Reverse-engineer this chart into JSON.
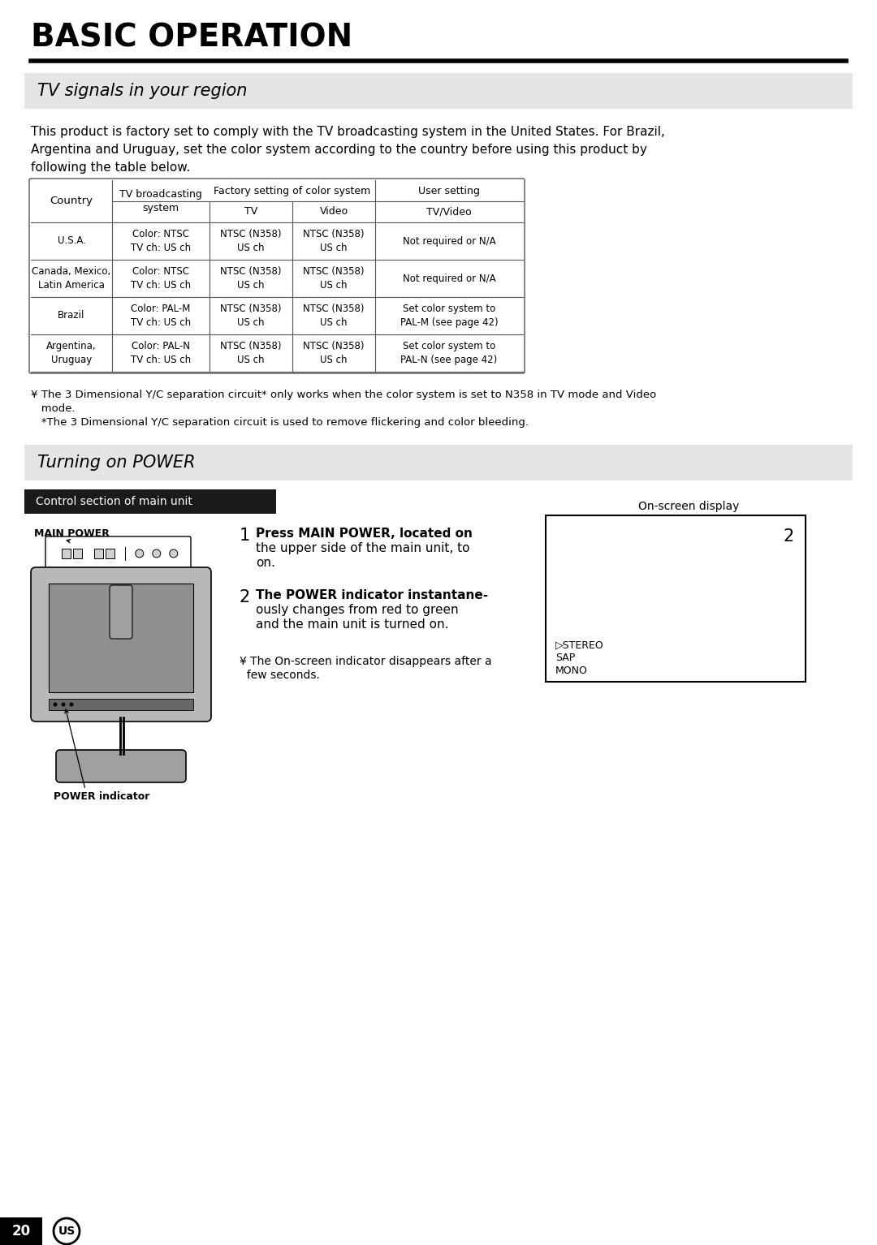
{
  "title": "BASIC OPERATION",
  "section1_title": "TV signals in your region",
  "section1_body_line1": "This product is factory set to comply with the TV broadcasting system in the United States. For Brazil,",
  "section1_body_line2": "Argentina and Uruguay, set the color system according to the country before using this product by",
  "section1_body_line3": "following the table below.",
  "table_rows": [
    [
      "U.S.A.",
      "Color: NTSC\nTV ch: US ch",
      "NTSC (N358)\nUS ch",
      "NTSC (N358)\nUS ch",
      "Not required or N/A"
    ],
    [
      "Canada, Mexico,\nLatin America",
      "Color: NTSC\nTV ch: US ch",
      "NTSC (N358)\nUS ch",
      "NTSC (N358)\nUS ch",
      "Not required or N/A"
    ],
    [
      "Brazil",
      "Color: PAL-M\nTV ch: US ch",
      "NTSC (N358)\nUS ch",
      "NTSC (N358)\nUS ch",
      "Set color system to\nPAL-M (see page 42)"
    ],
    [
      "Argentina,\nUruguay",
      "Color: PAL-N\nTV ch: US ch",
      "NTSC (N358)\nUS ch",
      "NTSC (N358)\nUS ch",
      "Set color system to\nPAL-N (see page 42)"
    ]
  ],
  "note1_line1": "¥ The 3 Dimensional Y/C separation circuit* only works when the color system is set to N358 in TV mode and Video",
  "note1_line2": "   mode.",
  "note1_line3": "   *The 3 Dimensional Y/C separation circuit is used to remove flickering and color bleeding.",
  "section2_title": "Turning on POWER",
  "section2_subtitle": "Control section of main unit",
  "step1_bold": "Press MAIN POWER, located on",
  "step1_rest_line1": "the upper side of the main unit, to",
  "step1_rest_line2": "on.",
  "step2_bold": "The POWER indicator instantane-",
  "step2_rest_line1": "ously changes from red to green",
  "step2_rest_line2": "and the main unit is turned on.",
  "note2_line1": "¥ The On-screen indicator disappears after a",
  "note2_line2": "  few seconds.",
  "main_power_label": "MAIN POWER",
  "power_indicator_label": "POWER indicator",
  "onscreen_label": "On-screen display",
  "onscreen_num": "2",
  "onscreen_item1": "▷STEREO",
  "onscreen_item2": "SAP",
  "onscreen_item3": "MONO",
  "page_num": "20",
  "bg_color": "#ffffff",
  "section_bg_color": "#e5e5e5",
  "subtitle_bg_color": "#1a1a1a",
  "subtitle_text_color": "#ffffff",
  "table_border_color": "#555555",
  "text_color": "#000000"
}
